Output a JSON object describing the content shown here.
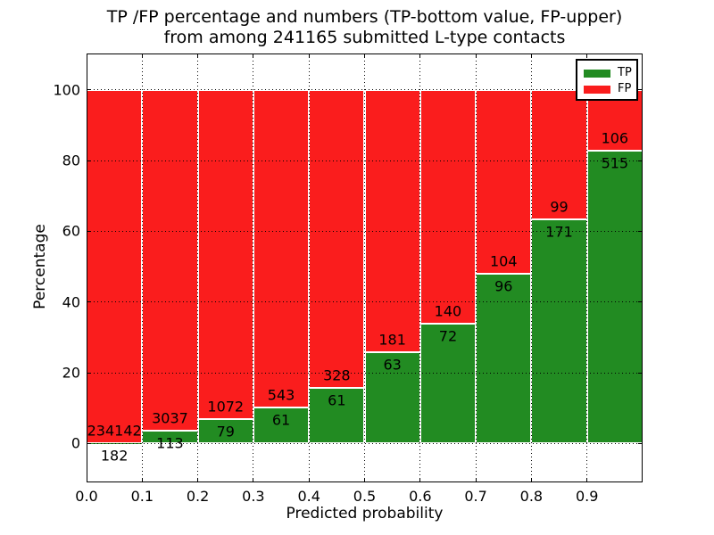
{
  "title": {
    "line1": "TP /FP percentage and numbers (TP-bottom value, FP-upper)",
    "line2": "from among 241165 submitted L-type contacts"
  },
  "axes": {
    "xlabel": "Predicted probability",
    "ylabel": "Percentage"
  },
  "legend": {
    "position": "upper right",
    "items": [
      {
        "label": "TP",
        "color": "#228b22"
      },
      {
        "label": "FP",
        "color": "#fa1d1d"
      }
    ]
  },
  "chart_data": {
    "type": "bar",
    "stacked": true,
    "normalized_total_percent": 100,
    "title": "TP /FP percentage and numbers (TP-bottom value, FP-upper) from among 241165 submitted L-type contacts",
    "xlabel": "Predicted probability",
    "ylabel": "Percentage",
    "total_contacts": 241165,
    "categories": [
      "0.0",
      "0.1",
      "0.2",
      "0.3",
      "0.4",
      "0.5",
      "0.6",
      "0.7",
      "0.8",
      "0.9"
    ],
    "bin_width": 0.1,
    "series": [
      {
        "name": "TP",
        "color": "#228b22",
        "counts": [
          182,
          113,
          79,
          61,
          61,
          63,
          72,
          96,
          171,
          515
        ],
        "percent": [
          0.08,
          3.59,
          6.86,
          10.1,
          15.68,
          25.82,
          33.96,
          48.0,
          63.33,
          82.93
        ]
      },
      {
        "name": "FP",
        "color": "#fa1d1d",
        "counts": [
          234142,
          3037,
          1072,
          543,
          328,
          181,
          140,
          104,
          99,
          106
        ],
        "percent": [
          99.92,
          96.41,
          93.14,
          89.9,
          84.32,
          74.18,
          66.04,
          52.0,
          36.67,
          17.07
        ]
      }
    ],
    "xticks": [
      "0.0",
      "0.1",
      "0.2",
      "0.3",
      "0.4",
      "0.5",
      "0.6",
      "0.7",
      "0.8",
      "0.9"
    ],
    "yticks": [
      0,
      20,
      40,
      60,
      80,
      100
    ],
    "xlim": [
      0.0,
      1.0
    ],
    "ylim": [
      -11,
      110.3
    ],
    "grid": {
      "linestyle": "dotted",
      "color": "#000000",
      "axes": "both"
    },
    "legend_position": "upper right",
    "annotation_rule": "TP count printed below segment boundary, FP count printed above segment boundary"
  }
}
